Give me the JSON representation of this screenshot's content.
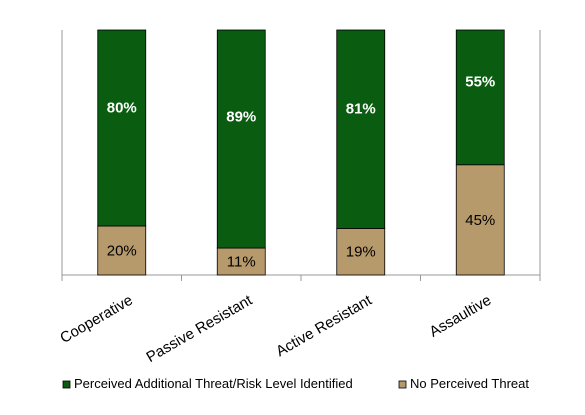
{
  "chart_data": {
    "type": "bar",
    "stacked": true,
    "percent_stacked": true,
    "categories": [
      "Cooperative",
      "Passive Resistant",
      "Active Resistant",
      "Assaultive"
    ],
    "series": [
      {
        "name": "No Perceived Threat",
        "values": [
          20,
          11,
          19,
          45
        ],
        "labels": [
          "20%",
          "11%",
          "19%",
          "45%"
        ],
        "color": "#b79a6b"
      },
      {
        "name": "Perceived Additional Threat/Risk Level Identified",
        "values": [
          80,
          89,
          81,
          55
        ],
        "labels": [
          "80%",
          "89%",
          "81%",
          "55%"
        ],
        "color": "#0a5c10"
      }
    ],
    "ylim": [
      0,
      100
    ],
    "grid": false,
    "legend": "bottom",
    "legend_order": [
      "Perceived Additional Threat/Risk Level Identified",
      "No Perceived Threat"
    ]
  }
}
